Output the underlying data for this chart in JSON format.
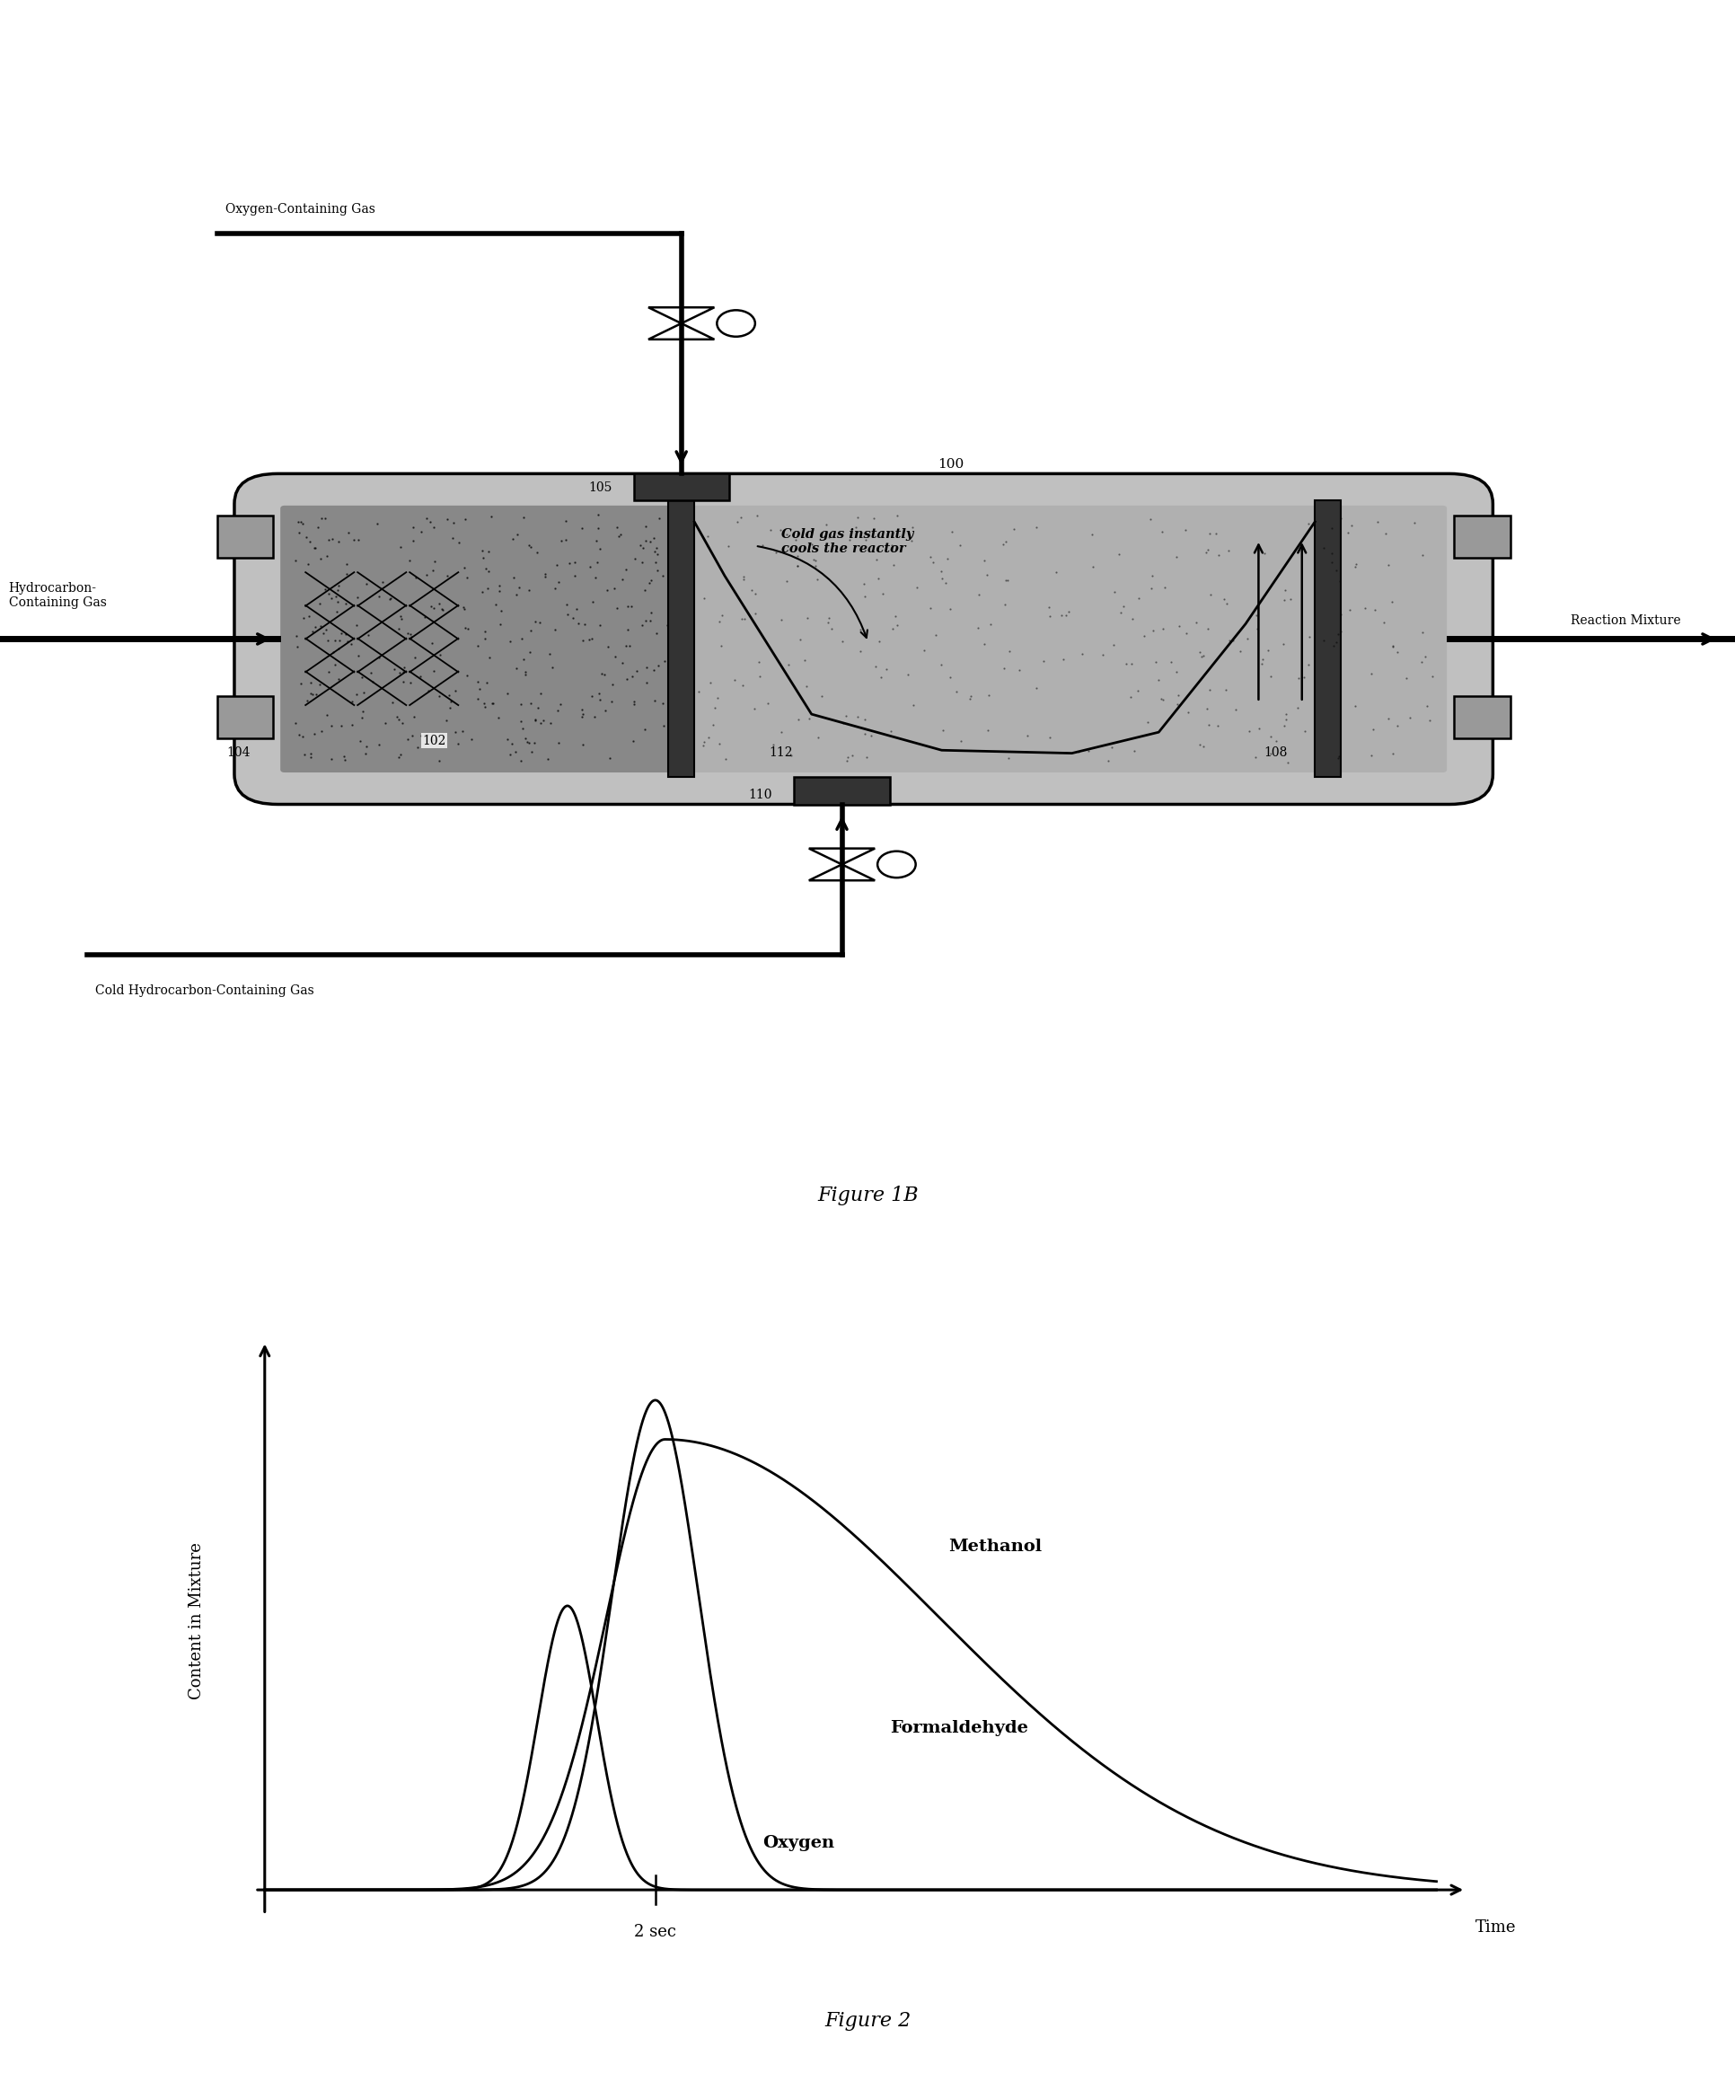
{
  "fig_width": 19.33,
  "fig_height": 23.08,
  "bg_color": "#ffffff",
  "figure1b_caption": "Figure 1B",
  "figure2_caption": "Figure 2",
  "fig2_ylabel": "Content in Mixture",
  "fig2_xlabel": "Time",
  "fig2_xtick": "2 sec",
  "label_methanol": "Methanol",
  "label_formaldehyde": "Formaldehyde",
  "label_oxygen": "Oxygen",
  "label_100": "100",
  "label_102": "102",
  "label_104": "104",
  "label_105": "105",
  "label_108": "108",
  "label_110": "110",
  "label_112": "112",
  "label_oxy_gas": "Oxygen-Containing Gas",
  "label_hydro_gas": "Hydrocarbon-\nContaining Gas",
  "label_cold_hydro": "Cold Hydrocarbon-Containing Gas",
  "label_reaction": "Reaction Mixture",
  "label_cold_gas_text": "Cold gas instantly\ncools the reactor",
  "line_color": "#000000",
  "reactor_fill": "#c0c0c0",
  "dark_zone_fill": "#888888",
  "light_zone_fill": "#b0b0b0"
}
